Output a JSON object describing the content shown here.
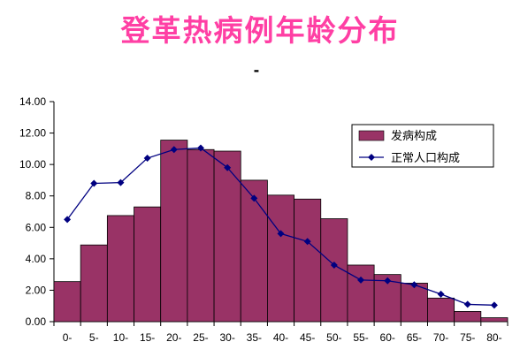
{
  "chart_data": {
    "type": "bar",
    "title": "登革热病例年龄分布",
    "subtitle": "-",
    "categories": [
      "0-",
      "5-",
      "10-",
      "15-",
      "20-",
      "25-",
      "30-",
      "35-",
      "40-",
      "45-",
      "50-",
      "55-",
      "60-",
      "65-",
      "70-",
      "75-",
      "80-"
    ],
    "series": [
      {
        "name": "发病构成",
        "type": "bar",
        "color": "#993366",
        "values": [
          2.55,
          4.88,
          6.75,
          7.3,
          11.55,
          10.95,
          10.85,
          9.0,
          8.05,
          7.8,
          6.55,
          3.6,
          3.0,
          2.45,
          1.5,
          0.65,
          0.25
        ]
      },
      {
        "name": "正常人口构成",
        "type": "line",
        "color": "#000080",
        "values": [
          6.5,
          8.8,
          8.85,
          10.4,
          10.95,
          11.05,
          9.8,
          7.85,
          5.6,
          5.1,
          3.6,
          2.65,
          2.6,
          2.35,
          1.75,
          1.1,
          1.05
        ]
      }
    ],
    "ylim": [
      0,
      14
    ],
    "yticks": [
      "0.00",
      "2.00",
      "4.00",
      "6.00",
      "8.00",
      "10.00",
      "12.00",
      "14.00"
    ],
    "xlabel": "",
    "ylabel": "",
    "grid": false,
    "legend_position": "top-right"
  }
}
